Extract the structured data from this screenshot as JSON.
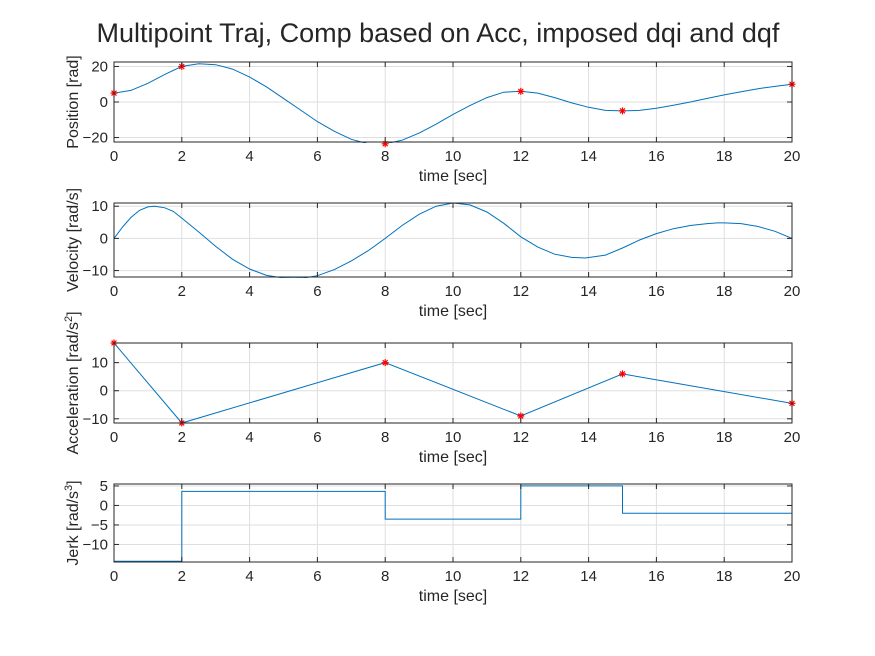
{
  "figure": {
    "title": "Multipoint Traj, Comp based on Acc, imposed dqi and dqf"
  },
  "colors": {
    "line": "#0072bd",
    "marker": "#ff0000",
    "grid": "#dfdfdf",
    "axis": "#262626",
    "background": "#ffffff"
  },
  "chart_data": [
    {
      "type": "line",
      "title": "",
      "xlabel": "time [sec]",
      "ylabel": "Position [rad]",
      "xlim": [
        0,
        20
      ],
      "ylim": [
        -22.5,
        22.5
      ],
      "xticks": [
        0,
        2,
        4,
        6,
        8,
        10,
        12,
        14,
        16,
        18,
        20
      ],
      "yticks": [
        -20,
        0,
        20
      ],
      "grid": true,
      "series": [
        {
          "style": "line",
          "x": [
            0,
            0.5,
            1,
            1.5,
            2,
            2.5,
            3,
            3.5,
            4,
            4.5,
            5,
            5.5,
            6,
            6.5,
            7,
            7.5,
            8,
            8.5,
            9,
            9.5,
            10,
            10.5,
            11,
            11.5,
            12,
            12.5,
            13,
            13.5,
            14,
            14.5,
            15,
            15.5,
            16,
            16.5,
            17,
            17.5,
            18,
            18.5,
            19,
            19.5,
            20
          ],
          "y": [
            5,
            6.5,
            10.5,
            15.5,
            20,
            21.5,
            21,
            18.5,
            14,
            8.5,
            2,
            -4.5,
            -11,
            -16.5,
            -21,
            -23.5,
            -23.5,
            -21.5,
            -17.5,
            -12.5,
            -7,
            -2,
            2.5,
            5.5,
            6,
            5,
            2.5,
            -0.5,
            -3,
            -4.7,
            -5,
            -4.7,
            -3.5,
            -1.8,
            0,
            2,
            4,
            5.8,
            7.5,
            8.8,
            10
          ]
        },
        {
          "style": "marker",
          "x": [
            0,
            2,
            8,
            12,
            15,
            20
          ],
          "y": [
            5,
            20,
            -23.5,
            6,
            -5,
            10
          ]
        }
      ]
    },
    {
      "type": "line",
      "title": "",
      "xlabel": "time [sec]",
      "ylabel": "Velocity [rad/s]",
      "xlim": [
        0,
        20
      ],
      "ylim": [
        -12,
        11
      ],
      "xticks": [
        0,
        2,
        4,
        6,
        8,
        10,
        12,
        14,
        16,
        18,
        20
      ],
      "yticks": [
        -10,
        0,
        10
      ],
      "grid": true,
      "series": [
        {
          "style": "line",
          "x": [
            0,
            0.25,
            0.5,
            0.75,
            1,
            1.2,
            1.5,
            1.75,
            2,
            2.5,
            3,
            3.5,
            4,
            4.5,
            5,
            5.3,
            5.6,
            6,
            6.5,
            7,
            7.5,
            8,
            8.5,
            9,
            9.5,
            10,
            10.5,
            11,
            11.5,
            12,
            12.5,
            13,
            13.5,
            13.9,
            14.5,
            15,
            15.5,
            16,
            16.5,
            17,
            17.5,
            17.8,
            18,
            18.5,
            19,
            19.5,
            20
          ],
          "y": [
            0,
            3.5,
            6.5,
            8.7,
            9.8,
            10,
            9.5,
            8.4,
            6.3,
            2,
            -2.5,
            -6.5,
            -9.5,
            -11.5,
            -12.3,
            -12.4,
            -12.3,
            -11.6,
            -9.7,
            -7,
            -3.8,
            0,
            4,
            7.5,
            10,
            11,
            10.4,
            8.2,
            4.7,
            0.5,
            -2.7,
            -4.9,
            -5.9,
            -6.1,
            -5.2,
            -3,
            -0.5,
            1.5,
            3,
            4,
            4.6,
            4.8,
            4.8,
            4.6,
            3.7,
            2.2,
            0
          ]
        }
      ]
    },
    {
      "type": "line",
      "title": "",
      "xlabel": "time [sec]",
      "ylabel": "Acceleration [rad/s^2]",
      "xlim": [
        0,
        20
      ],
      "ylim": [
        -11.5,
        17
      ],
      "xticks": [
        0,
        2,
        4,
        6,
        8,
        10,
        12,
        14,
        16,
        18,
        20
      ],
      "yticks": [
        -10,
        0,
        10
      ],
      "grid": true,
      "series": [
        {
          "style": "line",
          "x": [
            0,
            2,
            8,
            12,
            15,
            20
          ],
          "y": [
            17,
            -11.5,
            10,
            -9,
            6,
            -4.5
          ]
        },
        {
          "style": "marker",
          "x": [
            0,
            2,
            8,
            12,
            15,
            20
          ],
          "y": [
            17,
            -11.5,
            10,
            -9,
            6,
            -4.5
          ]
        }
      ]
    },
    {
      "type": "line",
      "title": "",
      "xlabel": "time [sec]",
      "ylabel": "Jerk [rad/s^3]",
      "xlim": [
        0,
        20
      ],
      "ylim": [
        -14.5,
        5.5
      ],
      "xticks": [
        0,
        2,
        4,
        6,
        8,
        10,
        12,
        14,
        16,
        18,
        20
      ],
      "yticks": [
        -10,
        -5,
        0,
        5
      ],
      "grid": true,
      "series": [
        {
          "style": "line",
          "x": [
            0,
            2,
            2,
            8,
            8,
            12,
            12,
            15,
            15,
            20
          ],
          "y": [
            -14.3,
            -14.3,
            3.6,
            3.6,
            -3.5,
            -3.5,
            5,
            5,
            -2,
            -2
          ]
        }
      ]
    }
  ]
}
